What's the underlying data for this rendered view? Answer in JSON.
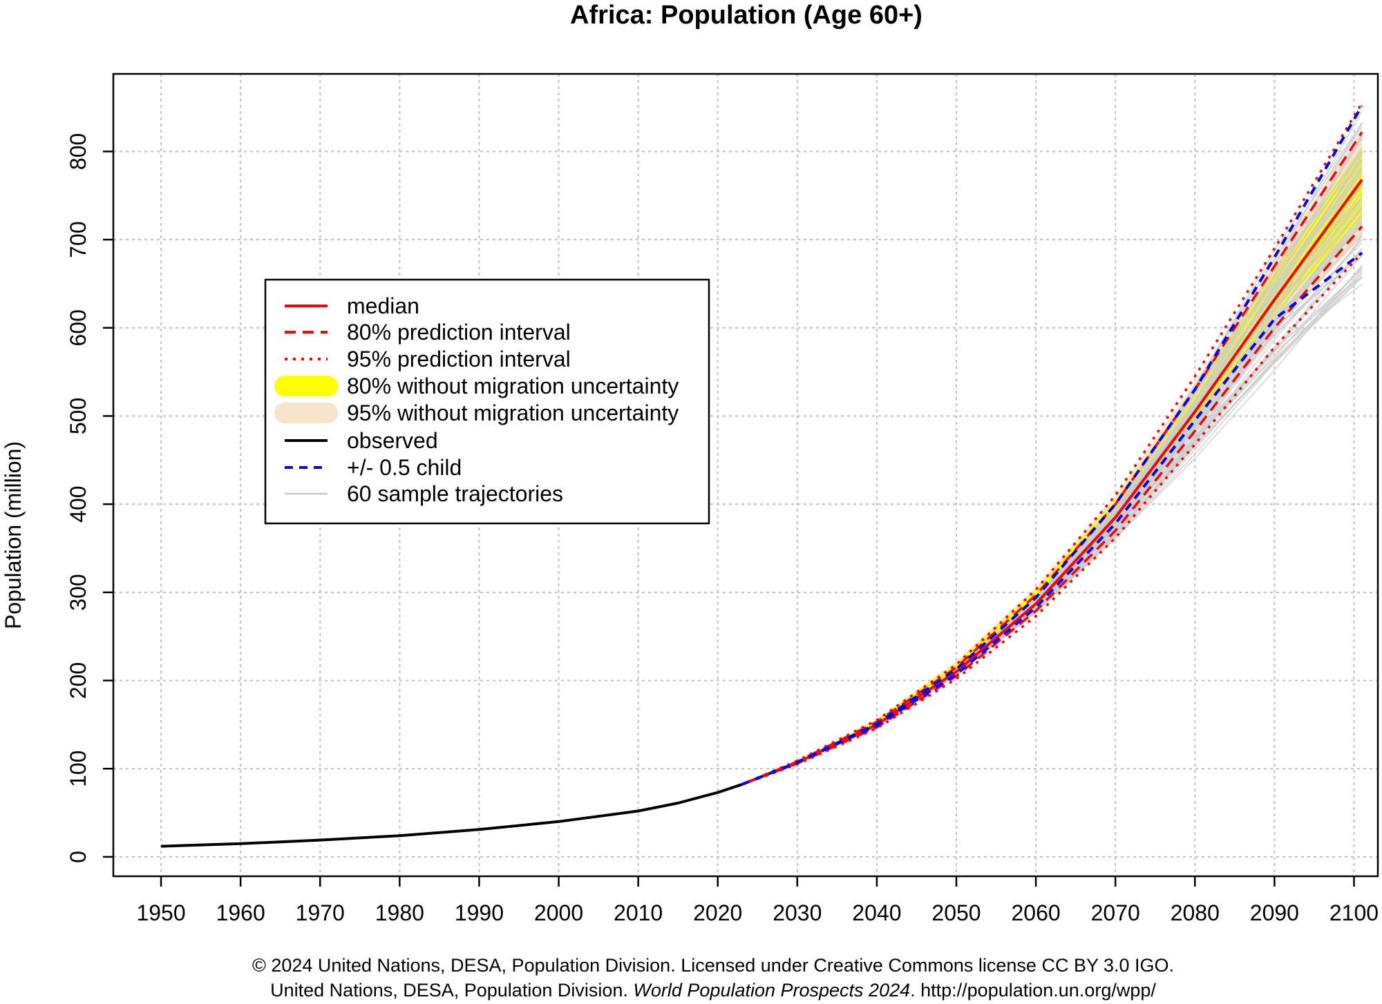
{
  "chart_data": {
    "type": "line",
    "title": "Africa: Population (Age 60+)",
    "xlabel": "",
    "ylabel": "Population (million)",
    "xlim": [
      1944,
      2103
    ],
    "ylim": [
      -22,
      888
    ],
    "x_ticks": [
      1950,
      1960,
      1970,
      1980,
      1990,
      2000,
      2010,
      2020,
      2030,
      2040,
      2050,
      2060,
      2070,
      2080,
      2090,
      2100
    ],
    "y_ticks": [
      0,
      100,
      200,
      300,
      400,
      500,
      600,
      700,
      800
    ],
    "grid": true,
    "legend_position": "left-center",
    "legend": {
      "median": "median",
      "pi80": "80% prediction interval",
      "pi95": "95% prediction interval",
      "nomig80": "80% without migration uncertainty",
      "nomig95": "95% without migration uncertainty",
      "observed": "observed",
      "half_child": "+/- 0.5 child",
      "samples": "60 sample trajectories"
    },
    "colors": {
      "median": "#ff0000",
      "pi": "#ff0000",
      "nomig80": "#ffff00",
      "nomig95": "#f8e4c8",
      "observed": "#000000",
      "half_child": "#0000ff",
      "samples": "#cccccc"
    },
    "series": [
      {
        "name": "observed",
        "x": [
          1950,
          1960,
          1970,
          1980,
          1990,
          2000,
          2010,
          2015,
          2020,
          2023
        ],
        "values": [
          12,
          15,
          19,
          24,
          31,
          40,
          52,
          61,
          73,
          82
        ]
      },
      {
        "name": "median",
        "x": [
          2023,
          2030,
          2040,
          2050,
          2060,
          2070,
          2080,
          2090,
          2101
        ],
        "values": [
          82,
          107,
          150,
          210,
          287,
          385,
          505,
          632,
          768
        ]
      },
      {
        "name": "80% upper",
        "x": [
          2023,
          2030,
          2040,
          2050,
          2060,
          2070,
          2080,
          2090,
          2101
        ],
        "values": [
          82,
          108,
          153,
          215,
          297,
          400,
          530,
          670,
          822
        ]
      },
      {
        "name": "80% lower",
        "x": [
          2023,
          2030,
          2040,
          2050,
          2060,
          2070,
          2080,
          2090,
          2101
        ],
        "values": [
          82,
          106,
          147,
          205,
          279,
          370,
          483,
          600,
          715
        ]
      },
      {
        "name": "95% upper",
        "x": [
          2023,
          2030,
          2040,
          2050,
          2060,
          2070,
          2080,
          2090,
          2101
        ],
        "values": [
          82,
          109,
          155,
          218,
          303,
          410,
          545,
          690,
          855
        ]
      },
      {
        "name": "95% lower",
        "x": [
          2023,
          2030,
          2040,
          2050,
          2060,
          2070,
          2080,
          2090,
          2101
        ],
        "values": [
          82,
          105,
          146,
          202,
          273,
          362,
          468,
          578,
          685
        ]
      },
      {
        "name": "+0.5 child",
        "x": [
          2023,
          2030,
          2040,
          2050,
          2060,
          2070,
          2080,
          2090,
          2101
        ],
        "values": [
          82,
          107,
          151,
          213,
          294,
          400,
          530,
          680,
          852
        ]
      },
      {
        "name": "-0.5 child",
        "x": [
          2023,
          2030,
          2040,
          2050,
          2060,
          2070,
          2080,
          2090,
          2101
        ],
        "values": [
          82,
          107,
          149,
          207,
          283,
          378,
          495,
          610,
          685
        ]
      },
      {
        "name": "80% without migration uncertainty upper",
        "x": [
          2023,
          2030,
          2040,
          2050,
          2060,
          2070,
          2080,
          2090,
          2101
        ],
        "values": [
          82,
          108,
          155,
          220,
          303,
          405,
          530,
          665,
          805
        ]
      },
      {
        "name": "80% without migration uncertainty lower",
        "x": [
          2023,
          2030,
          2040,
          2050,
          2060,
          2070,
          2080,
          2090,
          2101
        ],
        "values": [
          82,
          106,
          149,
          209,
          285,
          380,
          495,
          615,
          725
        ]
      },
      {
        "name": "95% without migration uncertainty upper",
        "x": [
          2023,
          2030,
          2040,
          2050,
          2060,
          2070,
          2080,
          2090,
          2101
        ],
        "values": [
          82,
          108,
          156,
          222,
          306,
          410,
          538,
          678,
          825
        ]
      },
      {
        "name": "95% without migration uncertainty lower",
        "x": [
          2023,
          2030,
          2040,
          2050,
          2060,
          2070,
          2080,
          2090,
          2101
        ],
        "values": [
          82,
          105,
          148,
          207,
          281,
          373,
          485,
          600,
          705
        ]
      }
    ],
    "sample_trajectories": {
      "count": 60,
      "x": [
        2023,
        2030,
        2040,
        2050,
        2060,
        2070,
        2080,
        2090,
        2101
      ],
      "final_range": [
        648,
        838
      ]
    }
  },
  "footer": {
    "line1": "© 2024 United Nations, DESA, Population Division. Licensed under Creative Commons license CC BY 3.0 IGO.",
    "line2_prefix": "United Nations, DESA, Population Division. ",
    "line2_italic": "World Population Prospects 2024",
    "line2_suffix": ". http://population.un.org/wpp/"
  }
}
